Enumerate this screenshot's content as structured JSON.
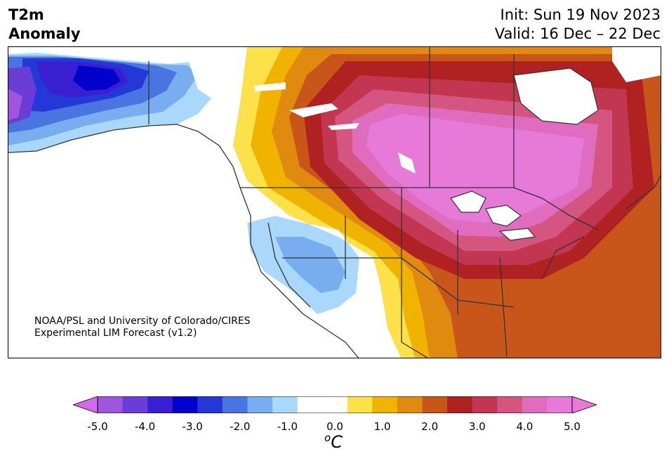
{
  "header": {
    "title_line1": "T2m",
    "title_line2": "Anomaly",
    "init": "Init: Sun 19 Nov 2023",
    "valid": "Valid: 16 Dec – 22 Dec"
  },
  "map": {
    "region": "North America",
    "credit_line1": "NOAA/PSL and University of Colorado/CIRES",
    "credit_line2": "Experimental LIM Forecast (v1.2)"
  },
  "colorbar": {
    "unit_base": "C",
    "unit_sup": "o",
    "ticks": [
      "-5.0",
      "-4.0",
      "-3.0",
      "-2.0",
      "-1.0",
      "0.0",
      "1.0",
      "2.0",
      "3.0",
      "4.0",
      "5.0"
    ],
    "levels": [
      -5.0,
      -4.5,
      -4.0,
      -3.5,
      -3.0,
      -2.5,
      -2.0,
      -1.5,
      -1.0,
      -0.5,
      0.5,
      1.0,
      1.5,
      2.0,
      2.5,
      3.0,
      3.5,
      4.0,
      4.5,
      5.0
    ],
    "colors": [
      "#a055dd",
      "#6a3cd8",
      "#3a1fd0",
      "#0000cc",
      "#2438d8",
      "#4a74e0",
      "#78aef0",
      "#aad8fa",
      "#ffffff",
      "#ffffff",
      "#fde14a",
      "#f0b400",
      "#e08a10",
      "#c8561a",
      "#b02222",
      "#c33652",
      "#d45580",
      "#e06cc0",
      "#e77ad8"
    ],
    "under_color": "#d36be8",
    "over_color": "#e77ad8"
  }
}
